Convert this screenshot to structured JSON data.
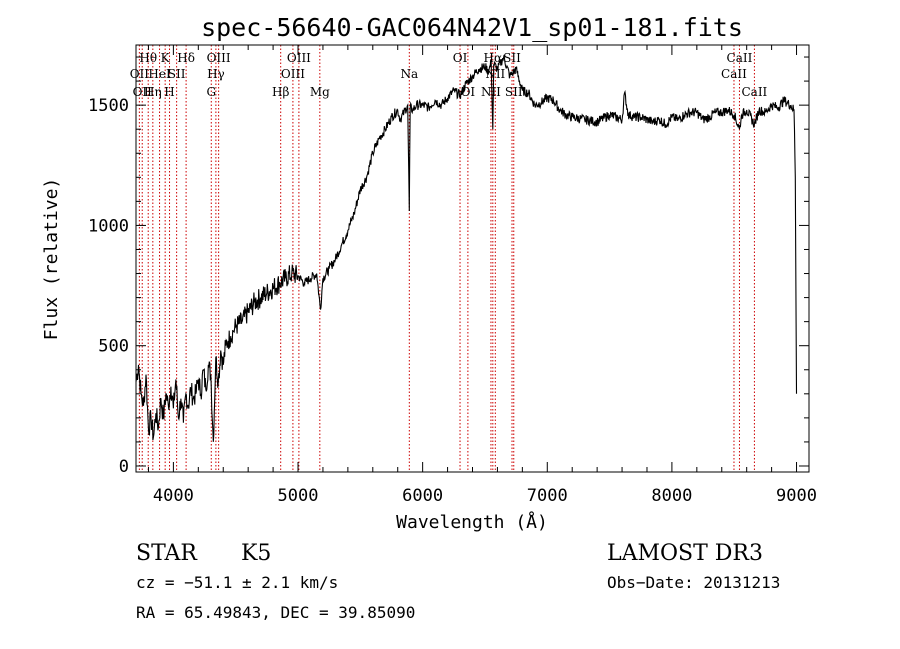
{
  "chart_data": {
    "type": "line",
    "title": "spec-56640-GAC064N42V1_sp01-181.fits",
    "xlabel": "Wavelength (Å)",
    "ylabel": "Flux (relative)",
    "xlim": [
      3700,
      9100
    ],
    "ylim": [
      -25,
      1750
    ],
    "xticks": [
      4000,
      5000,
      6000,
      7000,
      8000,
      9000
    ],
    "yticks": [
      0,
      500,
      1000,
      1500
    ],
    "series": [
      {
        "name": "flux",
        "x": [
          3700,
          3720,
          3740,
          3760,
          3780,
          3800,
          3820,
          3840,
          3860,
          3880,
          3900,
          3920,
          3940,
          3960,
          3980,
          4000,
          4020,
          4040,
          4060,
          4080,
          4100,
          4120,
          4140,
          4160,
          4180,
          4200,
          4220,
          4240,
          4260,
          4280,
          4300,
          4320,
          4340,
          4360,
          4380,
          4400,
          4420,
          4440,
          4460,
          4480,
          4500,
          4550,
          4600,
          4650,
          4700,
          4750,
          4800,
          4850,
          4900,
          4950,
          5000,
          5050,
          5100,
          5150,
          5180,
          5200,
          5250,
          5300,
          5350,
          5400,
          5450,
          5500,
          5550,
          5600,
          5650,
          5700,
          5750,
          5800,
          5820,
          5850,
          5880,
          5893,
          5900,
          5920,
          5950,
          6000,
          6050,
          6100,
          6150,
          6200,
          6250,
          6300,
          6350,
          6400,
          6450,
          6500,
          6530,
          6550,
          6563,
          6570,
          6600,
          6650,
          6700,
          6750,
          6800,
          6850,
          6900,
          6950,
          7000,
          7050,
          7100,
          7150,
          7200,
          7300,
          7400,
          7500,
          7550,
          7600,
          7620,
          7650,
          7700,
          7750,
          7800,
          7850,
          7900,
          7950,
          8000,
          8050,
          8100,
          8150,
          8200,
          8250,
          8300,
          8350,
          8400,
          8450,
          8500,
          8542,
          8560,
          8600,
          8662,
          8700,
          8750,
          8800,
          8850,
          8900,
          8950,
          8980,
          8990,
          9000
        ],
        "values": [
          350,
          420,
          300,
          250,
          380,
          150,
          200,
          120,
          220,
          160,
          280,
          200,
          300,
          250,
          330,
          240,
          360,
          200,
          280,
          180,
          300,
          250,
          320,
          280,
          300,
          360,
          300,
          400,
          320,
          420,
          380,
          100,
          450,
          350,
          480,
          420,
          500,
          520,
          540,
          560,
          580,
          600,
          640,
          680,
          700,
          720,
          740,
          760,
          780,
          800,
          790,
          760,
          780,
          800,
          650,
          780,
          820,
          860,
          920,
          980,
          1050,
          1150,
          1200,
          1300,
          1360,
          1400,
          1450,
          1480,
          1440,
          1470,
          1500,
          1060,
          1490,
          1480,
          1500,
          1500,
          1490,
          1520,
          1500,
          1530,
          1560,
          1540,
          1590,
          1620,
          1650,
          1660,
          1640,
          1680,
          1400,
          1670,
          1650,
          1700,
          1620,
          1650,
          1560,
          1550,
          1500,
          1510,
          1530,
          1520,
          1480,
          1460,
          1450,
          1440,
          1430,
          1460,
          1450,
          1440,
          1550,
          1460,
          1450,
          1450,
          1440,
          1430,
          1440,
          1420,
          1450,
          1440,
          1460,
          1470,
          1470,
          1440,
          1450,
          1470,
          1470,
          1480,
          1460,
          1400,
          1460,
          1480,
          1420,
          1480,
          1470,
          1500,
          1490,
          1520,
          1500,
          1480,
          1200,
          300
        ]
      }
    ],
    "lines": [
      {
        "x": 3727,
        "labels": [
          "OII"
        ],
        "row": 2
      },
      {
        "x": 3750,
        "labels": [
          "OII"
        ],
        "row": 3
      },
      {
        "x": 3798,
        "labels": [
          "Hθ"
        ],
        "row": 1
      },
      {
        "x": 3835,
        "labels": [
          "Hη"
        ],
        "row": 3
      },
      {
        "x": 3889,
        "labels": [
          "HeI"
        ],
        "row": 2
      },
      {
        "x": 3934,
        "labels": [
          "K"
        ],
        "row": 1
      },
      {
        "x": 3969,
        "labels": [
          "H"
        ],
        "row": 3
      },
      {
        "x": 4026,
        "labels": [
          "SII"
        ],
        "row": 2
      },
      {
        "x": 4102,
        "labels": [
          "Hδ"
        ],
        "row": 1
      },
      {
        "x": 4304,
        "labels": [
          "G"
        ],
        "row": 3
      },
      {
        "x": 4341,
        "labels": [
          "Hγ"
        ],
        "row": 2
      },
      {
        "x": 4363,
        "labels": [
          "OIII"
        ],
        "row": 1
      },
      {
        "x": 4861,
        "labels": [
          "Hβ"
        ],
        "row": 3
      },
      {
        "x": 4959,
        "labels": [
          "OIII"
        ],
        "row": 2
      },
      {
        "x": 5007,
        "labels": [
          "OIII"
        ],
        "row": 1
      },
      {
        "x": 5175,
        "labels": [
          "Mg"
        ],
        "row": 3
      },
      {
        "x": 5893,
        "labels": [
          "Na"
        ],
        "row": 2
      },
      {
        "x": 6300,
        "labels": [
          "OI"
        ],
        "row": 1
      },
      {
        "x": 6363,
        "labels": [
          "OI"
        ],
        "row": 3
      },
      {
        "x": 6548,
        "labels": [
          "NII"
        ],
        "row": 3
      },
      {
        "x": 6563,
        "labels": [
          "Hα"
        ],
        "row": 1
      },
      {
        "x": 6583,
        "labels": [
          "NII"
        ],
        "row": 2
      },
      {
        "x": 6717,
        "labels": [
          "SII"
        ],
        "row": 1
      },
      {
        "x": 6731,
        "labels": [
          "SII"
        ],
        "row": 3
      },
      {
        "x": 8498,
        "labels": [
          "CaII"
        ],
        "row": 2
      },
      {
        "x": 8542,
        "labels": [
          "CaII"
        ],
        "row": 1
      },
      {
        "x": 8662,
        "labels": [
          "CaII"
        ],
        "row": 3
      }
    ]
  },
  "info": {
    "class_label": "STAR",
    "subclass": "K5",
    "survey": "LAMOST DR3",
    "cz": "cz = −51.1 ± 2.1 km/s",
    "obs_date": "Obs−Date: 20131213",
    "radec": "RA =  65.49843, DEC =  39.85090"
  },
  "colors": {
    "line_marker": "#cc0000",
    "spectrum": "#000000"
  }
}
